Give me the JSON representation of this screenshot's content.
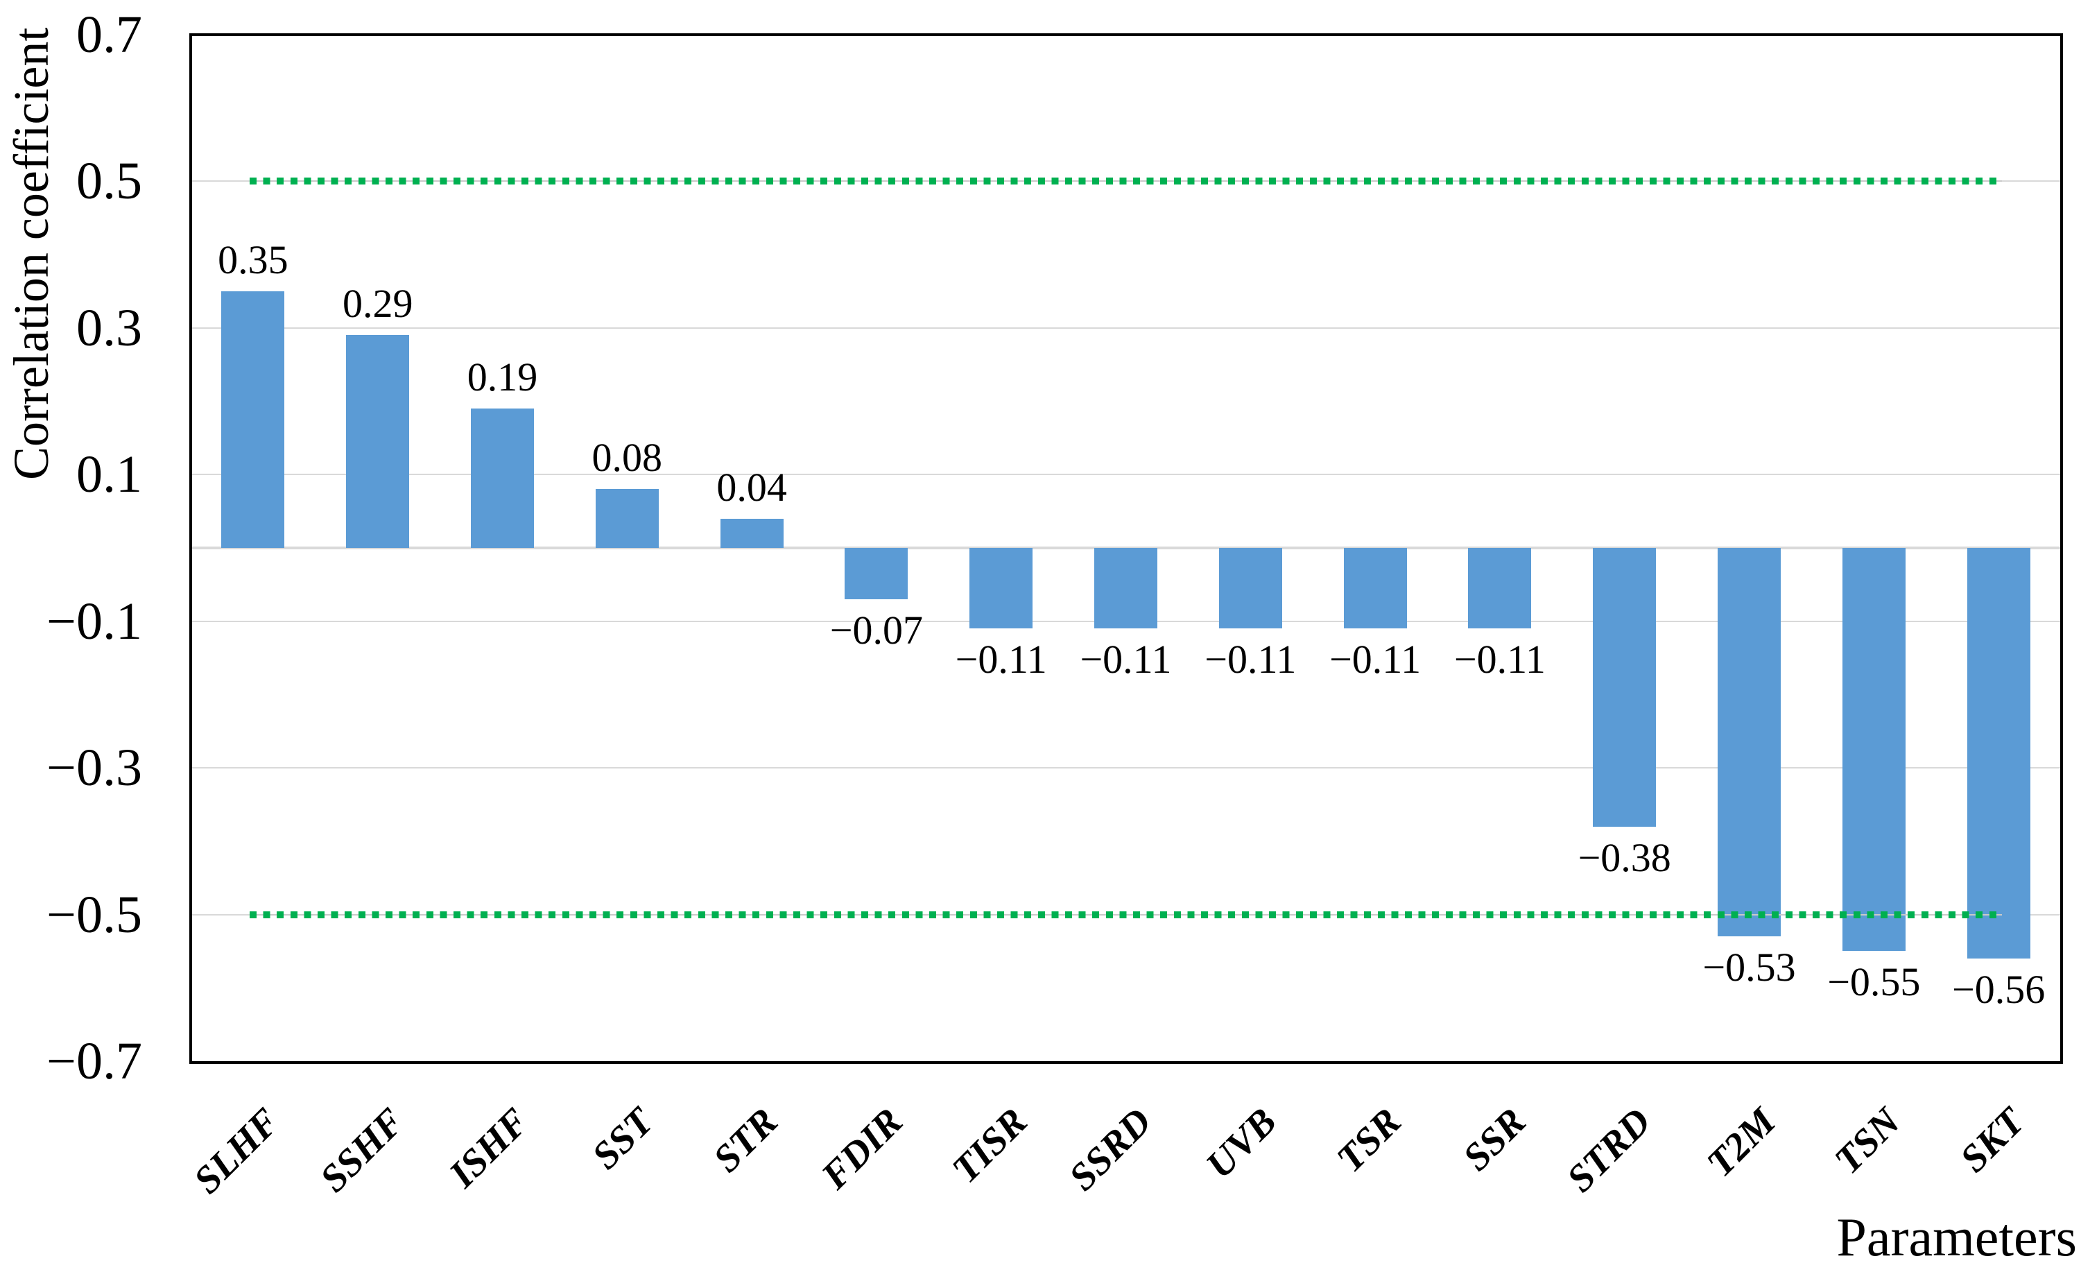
{
  "figure": {
    "background": "#FFFFFF"
  },
  "chart_data": {
    "type": "bar",
    "title": "",
    "xlabel": "Parameters",
    "ylabel": "Correlation coefficient",
    "categories": [
      "SLHF",
      "SSHF",
      "ISHF",
      "SST",
      "STR",
      "FDIR",
      "TISR",
      "SSRD",
      "UVB",
      "TSR",
      "SSR",
      "STRD",
      "T2M",
      "TSN",
      "SKT"
    ],
    "values": [
      0.35,
      0.29,
      0.19,
      0.08,
      0.04,
      -0.07,
      -0.11,
      -0.11,
      -0.11,
      -0.11,
      -0.11,
      -0.38,
      -0.53,
      -0.55,
      -0.56
    ],
    "bar_labels": [
      "0.35",
      "0.29",
      "0.19",
      "0.08",
      "0.04",
      "−0.07",
      "−0.11",
      "−0.11",
      "−0.11",
      "−0.11",
      "−0.11",
      "−0.38",
      "−0.53",
      "−0.55",
      "−0.56"
    ],
    "ylim": [
      -0.7,
      0.7
    ],
    "yticks": [
      {
        "value": 0.7,
        "label": "0.7"
      },
      {
        "value": 0.5,
        "label": "0.5"
      },
      {
        "value": 0.3,
        "label": "0.3"
      },
      {
        "value": 0.1,
        "label": "0.1"
      },
      {
        "value": -0.1,
        "label": "−0.1"
      },
      {
        "value": -0.3,
        "label": "−0.3"
      },
      {
        "value": -0.5,
        "label": "−0.5"
      },
      {
        "value": -0.7,
        "label": "−0.7"
      }
    ],
    "grid": true,
    "legend_position": "none",
    "reference_lines": [
      {
        "value": 0.5,
        "style": "dotted"
      },
      {
        "value": -0.5,
        "style": "dotted"
      }
    ],
    "colors": {
      "bar": "#5B9BD5",
      "reference_dot": "#00B050",
      "reference_base": "#C9C9C9",
      "gridline": "#D9D9D9",
      "axis_border": "#000000",
      "text": "#000000"
    }
  }
}
